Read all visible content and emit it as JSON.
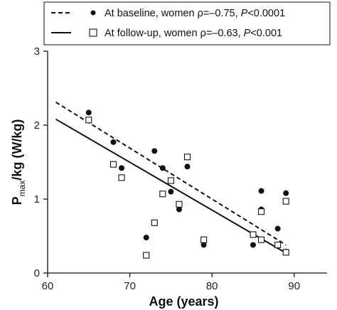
{
  "chart_data": {
    "type": "scatter",
    "xlabel": "Age (years)",
    "ylabel": {
      "main": "P",
      "sub": "max",
      "rest": "/kg (W/kg)"
    },
    "xlim": [
      60,
      94
    ],
    "ylim": [
      0,
      3
    ],
    "xticks": [
      60,
      70,
      80,
      90
    ],
    "yticks": [
      0,
      1,
      2,
      3
    ],
    "grid": false,
    "legend_position": "top",
    "series": [
      {
        "name": "At baseline, women ρ=–0.75, P<0.0001",
        "legend": {
          "pre": "At baseline, women ρ=–0.75, ",
          "italic": "P",
          "post": "<0.0001"
        },
        "marker": "filled-circle",
        "line_style": "dashed",
        "points": [
          [
            65,
            2.17
          ],
          [
            68,
            1.77
          ],
          [
            69,
            1.42
          ],
          [
            72,
            0.48
          ],
          [
            73,
            1.65
          ],
          [
            74,
            1.42
          ],
          [
            75,
            1.1
          ],
          [
            76,
            0.86
          ],
          [
            77,
            1.44
          ],
          [
            79,
            0.38
          ],
          [
            85,
            0.38
          ],
          [
            86,
            1.11
          ],
          [
            86,
            0.86
          ],
          [
            88,
            0.6
          ],
          [
            89,
            1.08
          ],
          [
            89,
            0.29
          ]
        ],
        "fit_line": [
          [
            61,
            2.31
          ],
          [
            89,
            0.38
          ]
        ]
      },
      {
        "name": "At follow-up, women ρ=–0.63, P<0.001",
        "legend": {
          "pre": "At follow-up, women ρ=–0.63, ",
          "italic": "P",
          "post": "<0.001"
        },
        "marker": "open-square",
        "line_style": "solid",
        "points": [
          [
            65,
            2.07
          ],
          [
            68,
            1.47
          ],
          [
            69,
            1.29
          ],
          [
            72,
            0.24
          ],
          [
            73,
            0.68
          ],
          [
            74,
            1.07
          ],
          [
            75,
            1.25
          ],
          [
            76,
            0.93
          ],
          [
            77,
            1.57
          ],
          [
            79,
            0.45
          ],
          [
            85,
            0.52
          ],
          [
            86,
            0.45
          ],
          [
            86,
            0.83
          ],
          [
            88,
            0.38
          ],
          [
            89,
            0.97
          ],
          [
            89,
            0.28
          ]
        ],
        "fit_line": [
          [
            61,
            2.08
          ],
          [
            89,
            0.27
          ]
        ]
      }
    ]
  }
}
